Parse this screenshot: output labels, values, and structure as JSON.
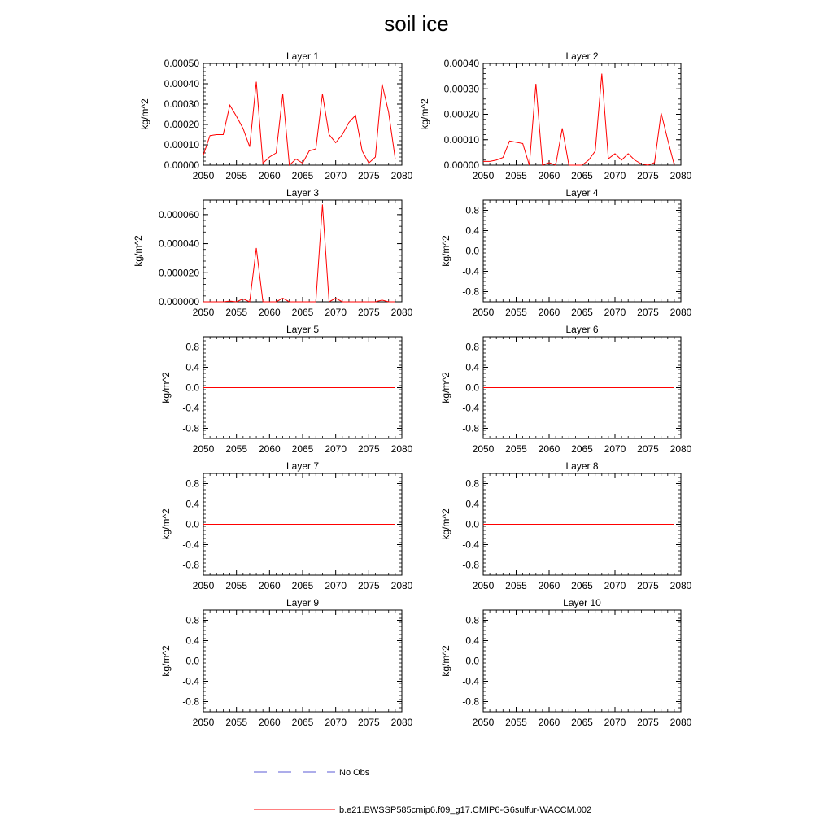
{
  "title": "soil ice",
  "colors": {
    "model": "#ff0000",
    "obs": "#5b5bd6",
    "axis": "#000000"
  },
  "legend": {
    "obs_label": "No Obs",
    "model_label": "b.e21.BWSSP585cmip6.f09_g17.CMIP6-G6sulfur-WACCM.002"
  },
  "chart_data": [
    {
      "type": "line",
      "title": "Layer 1",
      "ylabel": "kg/m^2",
      "xlim": [
        2050,
        2080
      ],
      "xticks": [
        2050,
        2055,
        2060,
        2065,
        2070,
        2075,
        2080
      ],
      "ylim": [
        0,
        0.0005
      ],
      "yticks": [
        "0.00000",
        "0.00010",
        "0.00020",
        "0.00030",
        "0.00040",
        "0.00050"
      ],
      "x": [
        2050,
        2051,
        2052,
        2053,
        2054,
        2055,
        2056,
        2057,
        2058,
        2059,
        2060,
        2061,
        2062,
        2063,
        2064,
        2065,
        2066,
        2067,
        2068,
        2069,
        2070,
        2071,
        2072,
        2073,
        2074,
        2075,
        2076,
        2077,
        2078,
        2079
      ],
      "values": [
        5e-05,
        0.000145,
        0.00015,
        0.00015,
        0.000295,
        0.00024,
        0.00018,
        9e-05,
        0.00041,
        1e-05,
        4e-05,
        6e-05,
        0.00035,
        0.0,
        3e-05,
        1e-05,
        7e-05,
        8e-05,
        0.00035,
        0.00015,
        0.00011,
        0.00015,
        0.00021,
        0.000245,
        7e-05,
        1e-05,
        4e-05,
        0.0004,
        0.00026,
        3e-05
      ]
    },
    {
      "type": "line",
      "title": "Layer 2",
      "ylabel": "kg/m^2",
      "xlim": [
        2050,
        2080
      ],
      "xticks": [
        2050,
        2055,
        2060,
        2065,
        2070,
        2075,
        2080
      ],
      "ylim": [
        0,
        0.0004
      ],
      "yticks": [
        "0.00000",
        "0.00010",
        "0.00020",
        "0.00030",
        "0.00040"
      ],
      "x": [
        2050,
        2051,
        2052,
        2053,
        2054,
        2055,
        2056,
        2057,
        2058,
        2059,
        2060,
        2061,
        2062,
        2063,
        2064,
        2065,
        2066,
        2067,
        2068,
        2069,
        2070,
        2071,
        2072,
        2073,
        2074,
        2075,
        2076,
        2077,
        2078,
        2079
      ],
      "values": [
        1.5e-05,
        1.5e-05,
        2e-05,
        3e-05,
        9.5e-05,
        9e-05,
        8.5e-05,
        0.0,
        0.00032,
        0.0,
        1e-05,
        0.0,
        0.000145,
        0.0,
        0.0,
        0.0,
        2e-05,
        5.5e-05,
        0.00036,
        2.5e-05,
        4.5e-05,
        2e-05,
        4.5e-05,
        2e-05,
        5e-06,
        0.0,
        1e-05,
        0.000205,
        0.0001,
        0.0
      ]
    },
    {
      "type": "line",
      "title": "Layer 3",
      "ylabel": "kg/m^2",
      "xlim": [
        2050,
        2080
      ],
      "xticks": [
        2050,
        2055,
        2060,
        2065,
        2070,
        2075,
        2080
      ],
      "ylim": [
        0,
        7e-05
      ],
      "yticks": [
        "0.000000",
        "0.000020",
        "0.000040",
        "0.000060"
      ],
      "ytick_values": [
        0,
        2e-05,
        4e-05,
        6e-05
      ],
      "x": [
        2050,
        2051,
        2052,
        2053,
        2054,
        2055,
        2056,
        2057,
        2058,
        2059,
        2060,
        2061,
        2062,
        2063,
        2064,
        2065,
        2066,
        2067,
        2068,
        2069,
        2070,
        2071,
        2072,
        2073,
        2074,
        2075,
        2076,
        2077,
        2078,
        2079
      ],
      "values": [
        0,
        0,
        0,
        0,
        5e-07,
        0,
        2e-06,
        0,
        3.7e-05,
        0,
        0,
        0,
        2.5e-06,
        0,
        0,
        0,
        0,
        0,
        6.7e-05,
        0,
        2.5e-06,
        0,
        0,
        0,
        0,
        0,
        0,
        1.2e-06,
        0,
        0
      ]
    },
    {
      "type": "line",
      "title": "Layer 4",
      "ylabel": "kg/m^2",
      "xlim": [
        2050,
        2080
      ],
      "xticks": [
        2050,
        2055,
        2060,
        2065,
        2070,
        2075,
        2080
      ],
      "ylim": [
        -1,
        1
      ],
      "yticks": [
        "0.8",
        "0.4",
        "0.0",
        "-0.4",
        "-0.8"
      ],
      "ytick_values": [
        0.8,
        0.4,
        0,
        -0.4,
        -0.8
      ],
      "x": [
        2050,
        2079
      ],
      "values": [
        0,
        0
      ]
    },
    {
      "type": "line",
      "title": "Layer 5",
      "ylabel": "kg/m^2",
      "xlim": [
        2050,
        2080
      ],
      "xticks": [
        2050,
        2055,
        2060,
        2065,
        2070,
        2075,
        2080
      ],
      "ylim": [
        -1,
        1
      ],
      "yticks": [
        "0.8",
        "0.4",
        "0.0",
        "-0.4",
        "-0.8"
      ],
      "ytick_values": [
        0.8,
        0.4,
        0,
        -0.4,
        -0.8
      ],
      "x": [
        2050,
        2079
      ],
      "values": [
        0,
        0
      ]
    },
    {
      "type": "line",
      "title": "Layer 6",
      "ylabel": "kg/m^2",
      "xlim": [
        2050,
        2080
      ],
      "xticks": [
        2050,
        2055,
        2060,
        2065,
        2070,
        2075,
        2080
      ],
      "ylim": [
        -1,
        1
      ],
      "yticks": [
        "0.8",
        "0.4",
        "0.0",
        "-0.4",
        "-0.8"
      ],
      "ytick_values": [
        0.8,
        0.4,
        0,
        -0.4,
        -0.8
      ],
      "x": [
        2050,
        2079
      ],
      "values": [
        0,
        0
      ]
    },
    {
      "type": "line",
      "title": "Layer 7",
      "ylabel": "kg/m^2",
      "xlim": [
        2050,
        2080
      ],
      "xticks": [
        2050,
        2055,
        2060,
        2065,
        2070,
        2075,
        2080
      ],
      "ylim": [
        -1,
        1
      ],
      "yticks": [
        "0.8",
        "0.4",
        "0.0",
        "-0.4",
        "-0.8"
      ],
      "ytick_values": [
        0.8,
        0.4,
        0,
        -0.4,
        -0.8
      ],
      "x": [
        2050,
        2079
      ],
      "values": [
        0,
        0
      ]
    },
    {
      "type": "line",
      "title": "Layer 8",
      "ylabel": "kg/m^2",
      "xlim": [
        2050,
        2080
      ],
      "xticks": [
        2050,
        2055,
        2060,
        2065,
        2070,
        2075,
        2080
      ],
      "ylim": [
        -1,
        1
      ],
      "yticks": [
        "0.8",
        "0.4",
        "0.0",
        "-0.4",
        "-0.8"
      ],
      "ytick_values": [
        0.8,
        0.4,
        0,
        -0.4,
        -0.8
      ],
      "x": [
        2050,
        2079
      ],
      "values": [
        0,
        0
      ]
    },
    {
      "type": "line",
      "title": "Layer 9",
      "ylabel": "kg/m^2",
      "xlim": [
        2050,
        2080
      ],
      "xticks": [
        2050,
        2055,
        2060,
        2065,
        2070,
        2075,
        2080
      ],
      "ylim": [
        -1,
        1
      ],
      "yticks": [
        "0.8",
        "0.4",
        "0.0",
        "-0.4",
        "-0.8"
      ],
      "ytick_values": [
        0.8,
        0.4,
        0,
        -0.4,
        -0.8
      ],
      "x": [
        2050,
        2079
      ],
      "values": [
        0,
        0
      ]
    },
    {
      "type": "line",
      "title": "Layer 10",
      "ylabel": "kg/m^2",
      "xlim": [
        2050,
        2080
      ],
      "xticks": [
        2050,
        2055,
        2060,
        2065,
        2070,
        2075,
        2080
      ],
      "ylim": [
        -1,
        1
      ],
      "yticks": [
        "0.8",
        "0.4",
        "0.0",
        "-0.4",
        "-0.8"
      ],
      "ytick_values": [
        0.8,
        0.4,
        0,
        -0.4,
        -0.8
      ],
      "x": [
        2050,
        2079
      ],
      "values": [
        0,
        0
      ]
    }
  ]
}
